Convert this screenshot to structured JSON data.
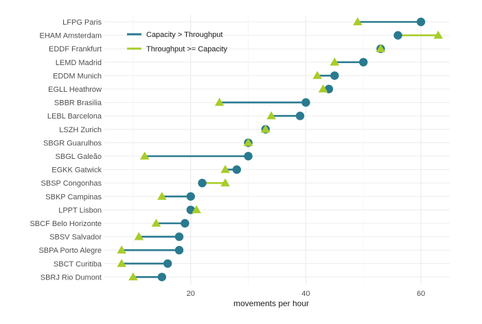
{
  "chart_data": {
    "type": "dumbbell",
    "xlabel": "movements per hour",
    "ylabel": "",
    "title": "",
    "xlim": [
      5,
      65
    ],
    "xticks": [
      20,
      40,
      60
    ],
    "grid": true,
    "legend": {
      "placement": "top-left",
      "entries": [
        {
          "label": "Capacity > Throughput",
          "color": "#2a7a8f"
        },
        {
          "label": "Throughput >= Capacity",
          "color": "#a8cc2a"
        }
      ]
    },
    "colors": {
      "capacity": "#2a7a8f",
      "throughput": "#a8cc2a",
      "grid": "#ececec",
      "text": "#4d4d4d"
    },
    "series_names": {
      "capacity": "Capacity",
      "throughput": "Throughput"
    },
    "categories": [
      "LFPG Paris",
      "EHAM Amsterdam",
      "EDDF Frankfurt",
      "LEMD Madrid",
      "EDDM Munich",
      "EGLL Heathrow",
      "SBBR Brasilia",
      "LEBL Barcelona",
      "LSZH Zurich",
      "SBGR Guarulhos",
      "SBGL Galeão",
      "EGKK Gatwick",
      "SBSP Congonhas",
      "SBKP Campinas",
      "LPPT Lisbon",
      "SBCF Belo Horizonte",
      "SBSV Salvador",
      "SBPA Porto Alegre",
      "SBCT Curitiba",
      "SBRJ Rio Dumont"
    ],
    "capacity": [
      60,
      56,
      53,
      50,
      45,
      44,
      40,
      39,
      33,
      30,
      30,
      28,
      22,
      20,
      20,
      19,
      18,
      18,
      16,
      15
    ],
    "throughput": [
      49,
      63,
      53,
      45,
      42,
      43,
      25,
      34,
      33,
      30,
      12,
      26,
      26,
      15,
      21,
      14,
      11,
      8,
      8,
      10
    ]
  }
}
